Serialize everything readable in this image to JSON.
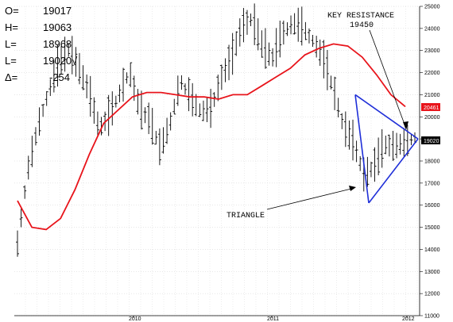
{
  "readout": [
    {
      "key": "O=",
      "value": "19017"
    },
    {
      "key": "H=",
      "value": "19063"
    },
    {
      "key": "L=",
      "value": "18968"
    },
    {
      "key": "L=",
      "value": "19020√"
    },
    {
      "key": "Δ=",
      "value": "-254"
    }
  ],
  "chart_data": {
    "type": "line",
    "ylim": [
      11000,
      25000
    ],
    "y_ticks": [
      11000,
      12000,
      13000,
      14000,
      15000,
      16000,
      17000,
      18000,
      19000,
      20000,
      21000,
      22000,
      23000,
      24000,
      25000
    ],
    "x_ticks": [
      "2010",
      "2011",
      "2012"
    ],
    "grid": true,
    "last_price_label": "19020",
    "moving_average_label": "20461",
    "colors": {
      "ma": "#e8141b",
      "triangle": "#1f2fd8",
      "last_price_bg": "#000000",
      "ma_bg": "#e8141b"
    },
    "series": [
      {
        "values": [
          14200,
          17500,
          19500,
          21000,
          22300,
          23000,
          22200,
          21100,
          19400,
          20000,
          21000,
          22000,
          20300,
          19800,
          18500,
          19700,
          21600,
          20800,
          20200,
          20300,
          21700,
          22600,
          24000,
          24400,
          23200,
          22600,
          23700,
          24200,
          24000,
          23400,
          22600,
          21200,
          19500,
          18800,
          17300,
          17700,
          18700,
          18600,
          18800,
          19020
        ]
      },
      {
        "values": [
          16200,
          15000,
          14900,
          15400,
          16700,
          18300,
          19700,
          20300,
          20900,
          21100,
          21100,
          21000,
          20900,
          20900,
          20800,
          21000,
          21000,
          21400,
          21800,
          22200,
          22800,
          23100,
          23300,
          23200,
          22700,
          21900,
          21000,
          20461
        ]
      }
    ],
    "annotations": [
      {
        "text": "KEY RESISTANCE",
        "value": "19450"
      },
      {
        "text": "TRIANGLE"
      }
    ]
  }
}
